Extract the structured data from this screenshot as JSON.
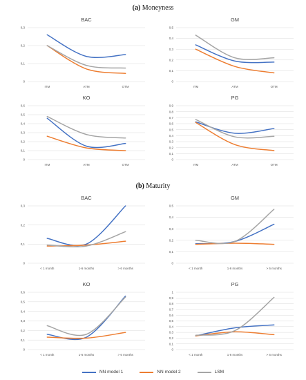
{
  "sections": {
    "a": {
      "letter": "(a)",
      "title": "Moneyness"
    },
    "b": {
      "letter": "(b)",
      "title": "Maturity"
    }
  },
  "legend": [
    {
      "name": "NN model 1",
      "color": "#4472c4"
    },
    {
      "name": "NN model 2",
      "color": "#ed7d31"
    },
    {
      "name": "LSM",
      "color": "#a5a5a5"
    }
  ],
  "chart_data": [
    {
      "type": "line",
      "title": "BAC",
      "categories": [
        "ITM",
        "ATM",
        "OTM"
      ],
      "ylim": [
        0,
        0.3
      ],
      "yticks": [
        "0",
        "0,1",
        "0,2",
        "0,3"
      ],
      "yticks_values": [
        0,
        0.1,
        0.2,
        0.3
      ],
      "series": [
        {
          "name": "NN model 1",
          "values": [
            0.26,
            0.14,
            0.15
          ]
        },
        {
          "name": "NN model 2",
          "values": [
            0.2,
            0.07,
            0.045
          ]
        },
        {
          "name": "LSM",
          "values": [
            0.2,
            0.09,
            0.075
          ]
        }
      ]
    },
    {
      "type": "line",
      "title": "GM",
      "categories": [
        "ITM",
        "ATM",
        "OTM"
      ],
      "ylim": [
        0,
        0.5
      ],
      "yticks": [
        "0",
        "0,1",
        "0,2",
        "0,3",
        "0,4",
        "0,5"
      ],
      "yticks_values": [
        0,
        0.1,
        0.2,
        0.3,
        0.4,
        0.5
      ],
      "series": [
        {
          "name": "NN model 1",
          "values": [
            0.34,
            0.19,
            0.18
          ]
        },
        {
          "name": "NN model 2",
          "values": [
            0.3,
            0.14,
            0.08
          ]
        },
        {
          "name": "LSM",
          "values": [
            0.43,
            0.22,
            0.22
          ]
        }
      ]
    },
    {
      "type": "line",
      "title": "KO",
      "categories": [
        "ITM",
        "ATM",
        "OTM"
      ],
      "ylim": [
        0,
        0.6
      ],
      "yticks": [
        "0",
        "0,1",
        "0,2",
        "0,3",
        "0,4",
        "0,5",
        "0,6"
      ],
      "yticks_values": [
        0,
        0.1,
        0.2,
        0.3,
        0.4,
        0.5,
        0.6
      ],
      "series": [
        {
          "name": "NN model 1",
          "values": [
            0.46,
            0.15,
            0.18
          ]
        },
        {
          "name": "NN model 2",
          "values": [
            0.26,
            0.13,
            0.1
          ]
        },
        {
          "name": "LSM",
          "values": [
            0.48,
            0.28,
            0.24
          ]
        }
      ]
    },
    {
      "type": "line",
      "title": "PG",
      "categories": [
        "ITM",
        "ATM",
        "OTM"
      ],
      "ylim": [
        0,
        0.9
      ],
      "yticks": [
        "0",
        "0,1",
        "0,2",
        "0,3",
        "0,4",
        "0,5",
        "0,6",
        "0,7",
        "0,8",
        "0,9"
      ],
      "yticks_values": [
        0,
        0.1,
        0.2,
        0.3,
        0.4,
        0.5,
        0.6,
        0.7,
        0.8,
        0.9
      ],
      "series": [
        {
          "name": "NN model 1",
          "values": [
            0.63,
            0.44,
            0.52
          ]
        },
        {
          "name": "NN model 2",
          "values": [
            0.62,
            0.25,
            0.15
          ]
        },
        {
          "name": "LSM",
          "values": [
            0.67,
            0.38,
            0.39
          ]
        }
      ]
    },
    {
      "type": "line",
      "title": "BAC",
      "categories": [
        "< 1 month",
        "1-6 months",
        "> 6 months"
      ],
      "ylim": [
        0,
        0.3
      ],
      "yticks": [
        "0",
        "0,1",
        "0,2",
        "0,3"
      ],
      "yticks_values": [
        0,
        0.1,
        0.2,
        0.3
      ],
      "series": [
        {
          "name": "NN model 1",
          "values": [
            0.13,
            0.1,
            0.3
          ]
        },
        {
          "name": "NN model 2",
          "values": [
            0.09,
            0.095,
            0.115
          ]
        },
        {
          "name": "LSM",
          "values": [
            0.095,
            0.09,
            0.165
          ]
        }
      ]
    },
    {
      "type": "line",
      "title": "GM",
      "categories": [
        "< 1 month",
        "1-6 months",
        "> 6 months"
      ],
      "ylim": [
        0,
        0.5
      ],
      "yticks": [
        "0",
        "0,1",
        "0,2",
        "0,3",
        "0,4",
        "0,5"
      ],
      "yticks_values": [
        0,
        0.1,
        0.2,
        0.3,
        0.4,
        0.5
      ],
      "series": [
        {
          "name": "NN model 1",
          "values": [
            0.17,
            0.19,
            0.34
          ]
        },
        {
          "name": "NN model 2",
          "values": [
            0.165,
            0.175,
            0.165
          ]
        },
        {
          "name": "LSM",
          "values": [
            0.2,
            0.19,
            0.47
          ]
        }
      ]
    },
    {
      "type": "line",
      "title": "KO",
      "categories": [
        "< 1 month",
        "1-6 months",
        "> 6 months"
      ],
      "ylim": [
        0,
        0.6
      ],
      "yticks": [
        "0",
        "0,1",
        "0,2",
        "0,3",
        "0,4",
        "0,5",
        "0,6"
      ],
      "yticks_values": [
        0,
        0.1,
        0.2,
        0.3,
        0.4,
        0.5,
        0.6
      ],
      "series": [
        {
          "name": "NN model 1",
          "values": [
            0.16,
            0.13,
            0.56
          ]
        },
        {
          "name": "NN model 2",
          "values": [
            0.13,
            0.12,
            0.18
          ]
        },
        {
          "name": "LSM",
          "values": [
            0.25,
            0.16,
            0.55
          ]
        }
      ]
    },
    {
      "type": "line",
      "title": "PG",
      "categories": [
        "< 1 month",
        "1-6 months",
        "> 6 months"
      ],
      "ylim": [
        0,
        1
      ],
      "yticks": [
        "0",
        "0,1",
        "0,2",
        "0,3",
        "0,4",
        "0,5",
        "0,6",
        "0,7",
        "0,8",
        "0,9",
        "1"
      ],
      "yticks_values": [
        0,
        0.1,
        0.2,
        0.3,
        0.4,
        0.5,
        0.6,
        0.7,
        0.8,
        0.9,
        1
      ],
      "series": [
        {
          "name": "NN model 1",
          "values": [
            0.24,
            0.38,
            0.43
          ]
        },
        {
          "name": "NN model 2",
          "values": [
            0.24,
            0.31,
            0.26
          ]
        },
        {
          "name": "LSM",
          "values": [
            0.25,
            0.33,
            0.91
          ]
        }
      ]
    }
  ]
}
